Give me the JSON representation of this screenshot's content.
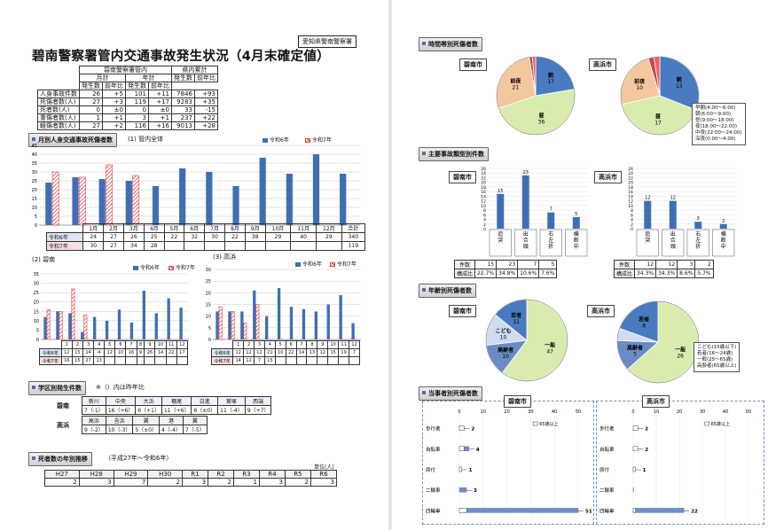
{
  "org": "愛知県警南警察署",
  "title": "碧南警察署管内交通事故発生状況（4月末確定値）",
  "summary": {
    "h1": "碧南警察署管内",
    "h2": "県内累計",
    "h_month": "月計",
    "h_year": "年計",
    "h_cnt": "発生数",
    "h_diff": "前年比",
    "rows": [
      {
        "label": "人身事故件数",
        "v": [
          "26",
          "+5",
          "101",
          "+11",
          "7846",
          "+93"
        ]
      },
      {
        "label": "死傷者数(人)",
        "v": [
          "27",
          "+3",
          "119",
          "+17",
          "9283",
          "+35"
        ]
      },
      {
        "label": "死者数(人)",
        "v": [
          "0",
          "±0",
          "0",
          "±0",
          "33",
          "-15"
        ]
      },
      {
        "label": "重傷者数(人)",
        "v": [
          "1",
          "+1",
          "3",
          "+1",
          "237",
          "+22"
        ]
      },
      {
        "label": "軽傷者数(人)",
        "v": [
          "27",
          "+2",
          "116",
          "+16",
          "9013",
          "+28"
        ]
      }
    ]
  },
  "monthly": {
    "section": "月別人身交通事故死傷者数",
    "sub1": "(1) 管内全体",
    "sub2": "(2) 碧南",
    "sub3": "(3) 高浜",
    "leg6": "令和6年",
    "leg7": "令和7年",
    "months": [
      "1月",
      "2月",
      "3月",
      "4月",
      "5月",
      "6月",
      "7月",
      "8月",
      "9月",
      "10月",
      "11月",
      "12月"
    ],
    "total": "合計",
    "row6": [
      "24",
      "27",
      "26",
      "25",
      "22",
      "32",
      "30",
      "22",
      "38",
      "29",
      "40",
      "29",
      "340"
    ],
    "row7": [
      "30",
      "27",
      "34",
      "28",
      "",
      "",
      "",
      "",
      "",
      "",
      "",
      "",
      "119"
    ]
  },
  "chart_data": [
    {
      "type": "bar",
      "title": "(1) 管内全体",
      "categories": [
        "1月",
        "2月",
        "3月",
        "4月",
        "5月",
        "6月",
        "7月",
        "8月",
        "9月",
        "10月",
        "11月",
        "12月"
      ],
      "ylim": [
        0,
        45
      ],
      "series": [
        {
          "name": "令和6年",
          "values": [
            24,
            27,
            26,
            25,
            22,
            32,
            30,
            22,
            38,
            29,
            40,
            29
          ]
        },
        {
          "name": "令和7年",
          "values": [
            30,
            27,
            34,
            28,
            null,
            null,
            null,
            null,
            null,
            null,
            null,
            null
          ]
        }
      ]
    },
    {
      "type": "bar",
      "title": "(2) 碧南",
      "categories": [
        "1",
        "2",
        "3",
        "4",
        "5",
        "6",
        "7",
        "8",
        "9",
        "10",
        "11",
        "12"
      ],
      "ylim": [
        0,
        35
      ],
      "series": [
        {
          "name": "令和6年",
          "values": [
            12,
            15,
            14,
            4,
            12,
            10,
            16,
            9,
            26,
            14,
            22,
            17
          ]
        },
        {
          "name": "令和7年",
          "values": [
            16,
            15,
            27,
            13,
            null,
            null,
            null,
            null,
            null,
            null,
            null,
            null
          ]
        }
      ]
    },
    {
      "type": "bar",
      "title": "(3) 高浜",
      "categories": [
        "1",
        "2",
        "3",
        "4",
        "5",
        "6",
        "7",
        "8",
        "9",
        "10",
        "11",
        "12"
      ],
      "ylim": [
        0,
        30
      ],
      "series": [
        {
          "name": "令和6年",
          "values": [
            12,
            12,
            12,
            21,
            10,
            22,
            14,
            13,
            12,
            15,
            19,
            7
          ]
        },
        {
          "name": "令和7年",
          "values": [
            14,
            12,
            7,
            15,
            null,
            null,
            null,
            null,
            null,
            null,
            null,
            null
          ]
        }
      ]
    },
    {
      "type": "pie",
      "title": "碧南市",
      "categories": [
        "朝",
        "昼",
        "夜",
        "前夜",
        "中夜",
        "早朝"
      ],
      "values": [
        17,
        36,
        0,
        21,
        1,
        1
      ]
    },
    {
      "type": "pie",
      "title": "高浜市",
      "categories": [
        "朝",
        "昼",
        "前夜",
        "中夜",
        "早朝"
      ],
      "values": [
        13,
        17,
        10,
        1,
        1
      ]
    },
    {
      "type": "bar",
      "title": "碧南市",
      "categories": [
        "追突",
        "出合頭",
        "右左折",
        "横断中"
      ],
      "values": [
        15,
        23,
        7,
        5
      ],
      "ylim": [
        0,
        26
      ]
    },
    {
      "type": "bar",
      "title": "高浜市",
      "categories": [
        "追突",
        "出合頭",
        "右左折",
        "横断中"
      ],
      "values": [
        12,
        12,
        3,
        2
      ],
      "ylim": [
        0,
        26
      ]
    },
    {
      "type": "pie",
      "title": "碧南市",
      "categories": [
        "一般",
        "高齢者",
        "こども",
        "若者"
      ],
      "values": [
        47,
        10,
        10,
        11
      ]
    },
    {
      "type": "pie",
      "title": "高浜市",
      "categories": [
        "一般",
        "高齢者",
        "こども",
        "若者"
      ],
      "values": [
        26,
        5,
        2,
        8
      ]
    },
    {
      "type": "bar",
      "title": "碧南市",
      "categories": [
        "歩行者",
        "自転車",
        "原付",
        "二輪車",
        "四輪車"
      ],
      "ylim": [
        0,
        50
      ],
      "series": [
        {
          "name": "全体",
          "values": [
            2,
            4,
            1,
            3,
            51
          ]
        },
        {
          "name": "65歳以上",
          "values": [
            2,
            2,
            1,
            0,
            3
          ]
        }
      ]
    },
    {
      "type": "bar",
      "title": "高浜市",
      "categories": [
        "歩行者",
        "自転車",
        "原付",
        "二輪車",
        "四輪車"
      ],
      "ylim": [
        0,
        50
      ],
      "series": [
        {
          "name": "全体",
          "values": [
            2,
            2,
            1,
            0,
            22
          ]
        },
        {
          "name": "65歳以上",
          "values": [
            2,
            2,
            1,
            0,
            1
          ]
        }
      ]
    }
  ],
  "area": {
    "section": "学区別発生件数",
    "note": "※（）内は昨年比",
    "hekinan": "碧南",
    "takahama": "高浜",
    "h_names": [
      "新川",
      "中央",
      "大浜",
      "棚尾",
      "日進",
      "鷲塚",
      "西端"
    ],
    "h_vals": [
      "7（-1）",
      "16（+6）",
      "6（+1）",
      "11（+6）",
      "6（±0）",
      "11（-4）",
      "9（+7）"
    ],
    "t_names": [
      "高浜",
      "吉浜",
      "翼",
      "港",
      "翼"
    ],
    "t_vals": [
      "9（-2）",
      "10（-3）",
      "5（±0）",
      "4（-4）",
      "7（-5）"
    ]
  },
  "deaths": {
    "section": "死者数の年別推移",
    "sub": "（平成27年～令和6年）",
    "unit": "単位(人)",
    "years": [
      "H27",
      "H28",
      "H29",
      "H30",
      "R1",
      "R2",
      "R3",
      "R4",
      "R5",
      "R6"
    ],
    "vals": [
      "2",
      "3",
      "7",
      "2",
      "3",
      "2",
      "1",
      "3",
      "2",
      "3"
    ]
  },
  "timeband": {
    "section": "時間帯別死傷者数",
    "city1": "碧南市",
    "city2": "高浜市",
    "p1": [
      "朝",
      "17",
      "昼",
      "36",
      "夜",
      "0",
      "前夜",
      "21",
      "中夜",
      "1",
      "早朝",
      "1"
    ],
    "p2": [
      "朝",
      "13",
      "昼",
      "17",
      "前夜",
      "10",
      "中夜",
      "1",
      "早朝",
      "1"
    ],
    "legend": [
      "早朝(4:00～6:00)",
      "朝(6:00～9:00)",
      "昼(9:00～18:00)",
      "夜(18:00～22:00)",
      "中夜(22:00～24:00)",
      "深夜(0:00～4:00)"
    ]
  },
  "types": {
    "section": "主要事故類型別件数",
    "city1": "碧南市",
    "city2": "高浜市",
    "cats": [
      "追突",
      "出合頭",
      "右左折",
      "横断中"
    ],
    "r1_cnt": "件数",
    "r1": [
      "15",
      "23",
      "7",
      "5"
    ],
    "r2_lbl": "構成比",
    "r1p": [
      "22.7%",
      "34.8%",
      "10.6%",
      "7.6%"
    ],
    "r2": [
      "12",
      "12",
      "3",
      "2"
    ],
    "r2p": [
      "34.3%",
      "34.3%",
      "8.6%",
      "5.7%"
    ]
  },
  "ages": {
    "section": "年齢別死傷者数",
    "city1": "碧南市",
    "city2": "高浜市",
    "legend": [
      "こども(15歳以下)",
      "若者(16～24歳)",
      "一般(25～65歳)",
      "高齢者(65歳以上)"
    ]
  },
  "mode": {
    "section": "当事者別死傷者数",
    "city1": "碧南市",
    "city2": "高浜市",
    "cats": [
      "歩行者",
      "自転車",
      "原付",
      "二輪車",
      "四輪車"
    ],
    "leg": "65歳以上",
    "ticks": [
      "0",
      "10",
      "20",
      "30",
      "40",
      "50"
    ]
  }
}
